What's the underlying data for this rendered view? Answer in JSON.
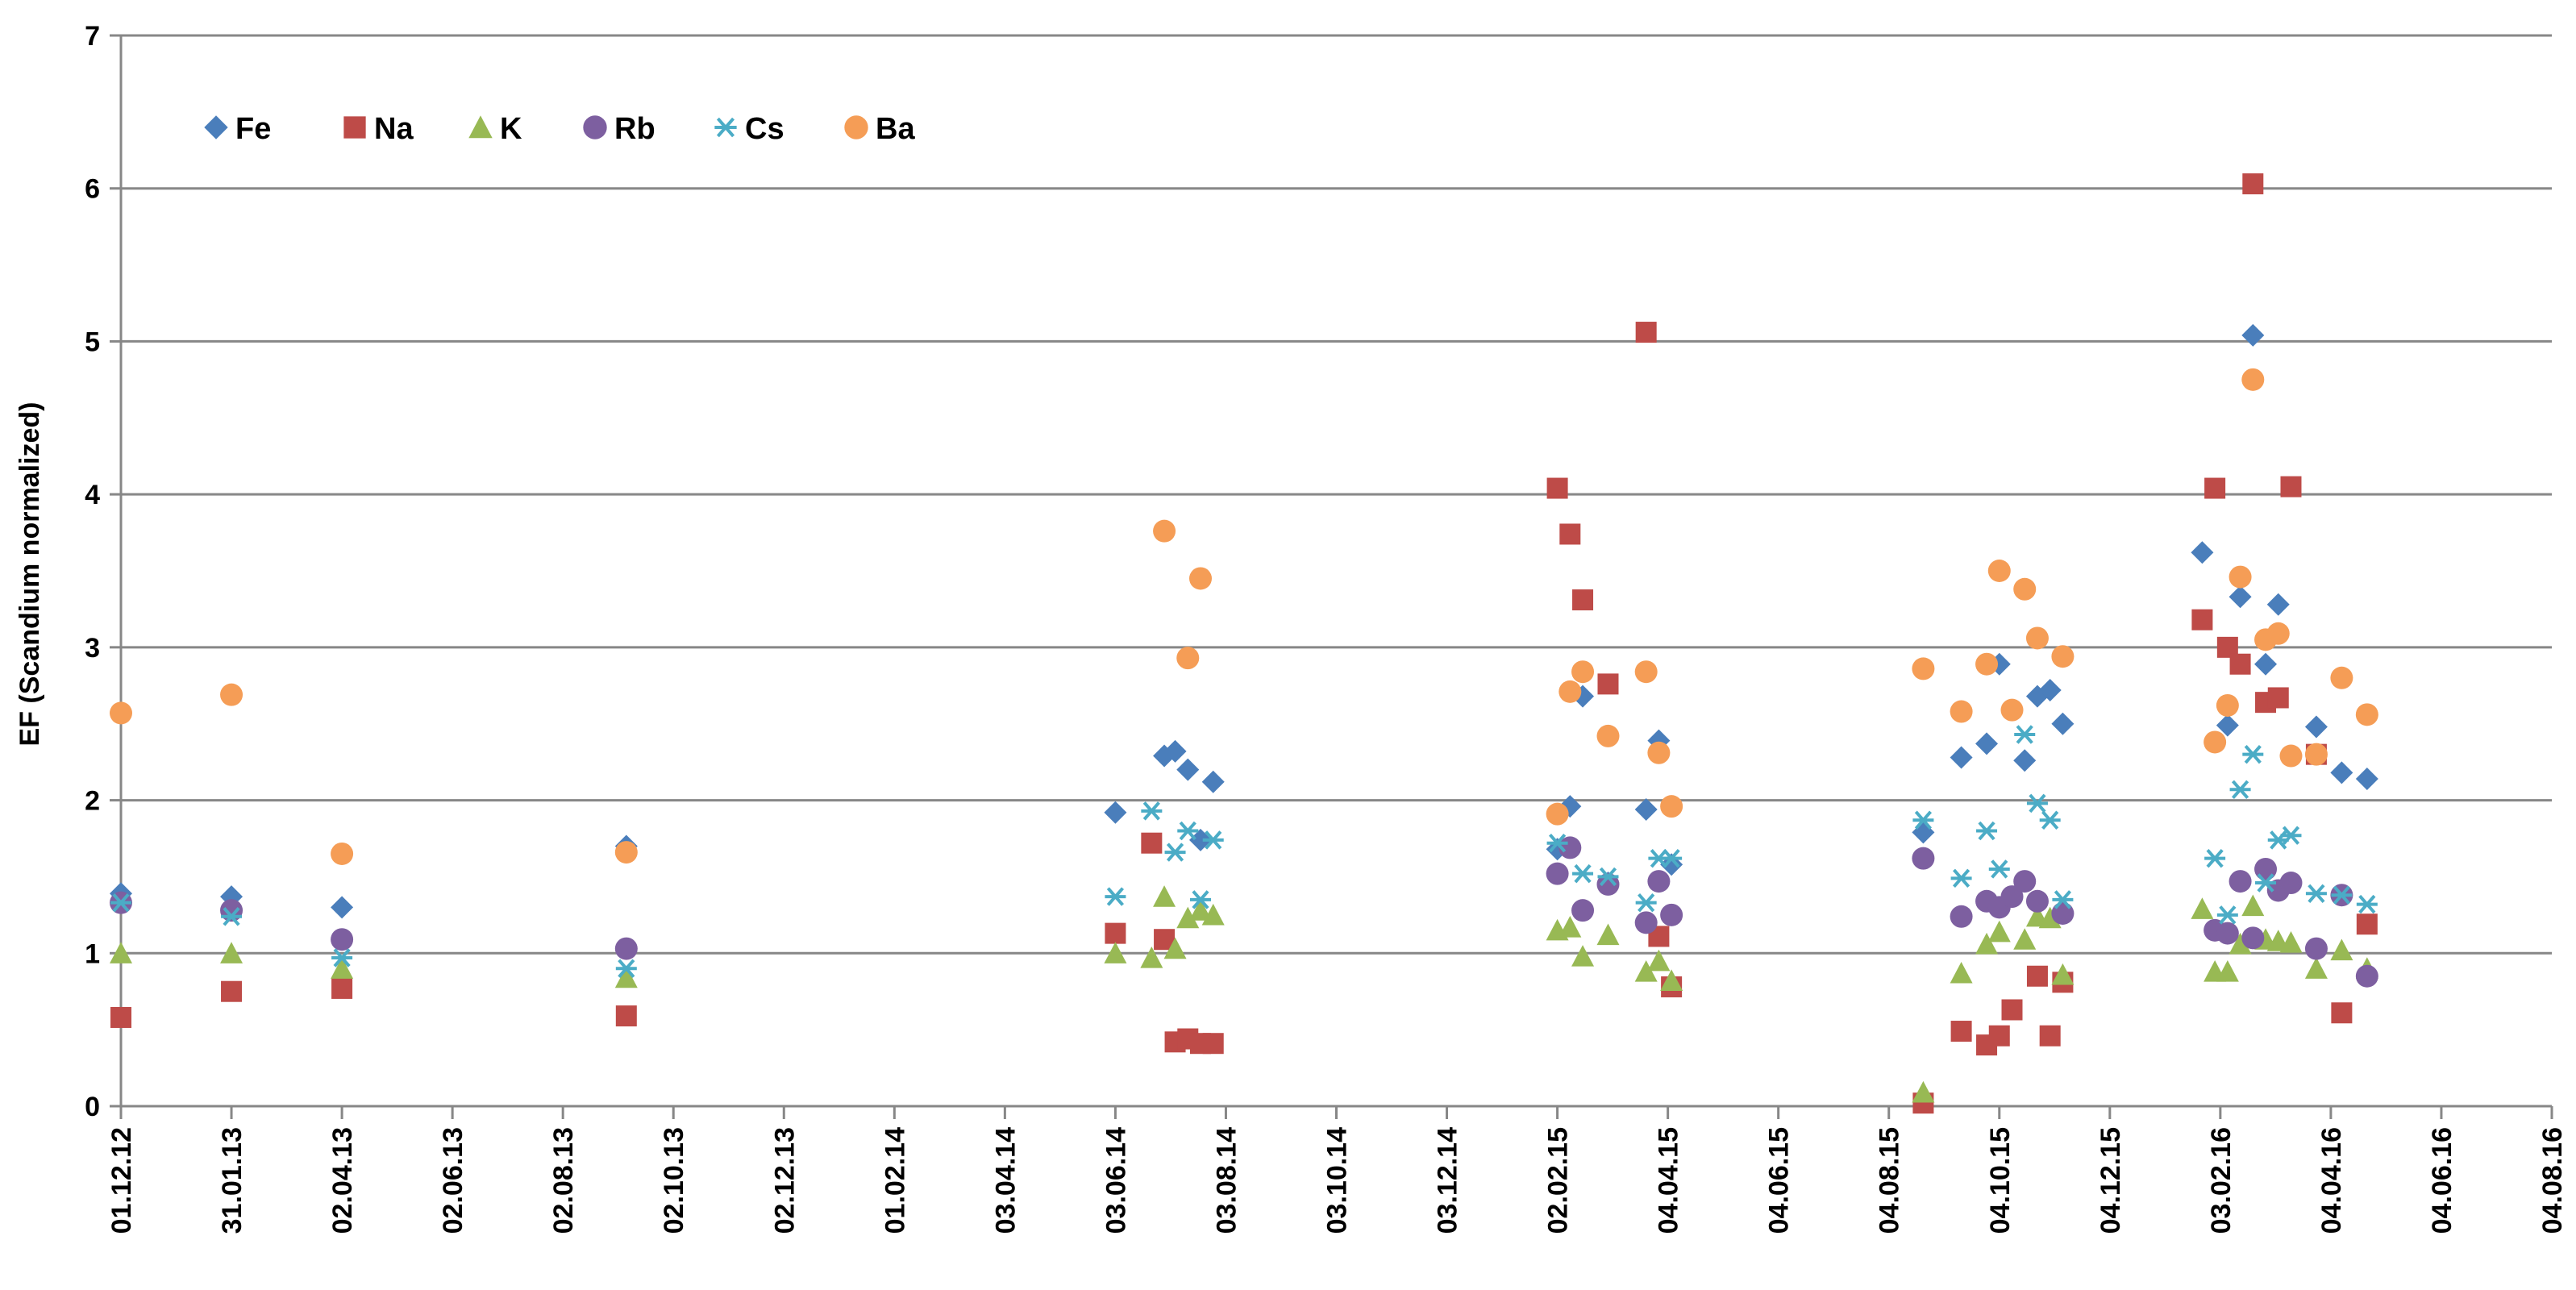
{
  "chart_data": {
    "type": "scatter",
    "title": "",
    "xlabel": "",
    "ylabel": "EF (Scandium normalized)",
    "ylim": [
      0,
      7
    ],
    "yticks": [
      0,
      1,
      2,
      3,
      4,
      5,
      6,
      7
    ],
    "y_grid": true,
    "legend_position": "top-left",
    "x_domain": [
      "2012-12-01",
      "2016-08-04"
    ],
    "x_ticks": [
      {
        "label": "01.12.12",
        "date": "2012-12-01"
      },
      {
        "label": "31.01.13",
        "date": "2013-01-31"
      },
      {
        "label": "02.04.13",
        "date": "2013-04-02"
      },
      {
        "label": "02.06.13",
        "date": "2013-06-02"
      },
      {
        "label": "02.08.13",
        "date": "2013-08-02"
      },
      {
        "label": "02.10.13",
        "date": "2013-10-02"
      },
      {
        "label": "02.12.13",
        "date": "2013-12-02"
      },
      {
        "label": "01.02.14",
        "date": "2014-02-01"
      },
      {
        "label": "03.04.14",
        "date": "2014-04-03"
      },
      {
        "label": "03.06.14",
        "date": "2014-06-03"
      },
      {
        "label": "03.08.14",
        "date": "2014-08-03"
      },
      {
        "label": "03.10.14",
        "date": "2014-10-03"
      },
      {
        "label": "03.12.14",
        "date": "2014-12-03"
      },
      {
        "label": "02.02.15",
        "date": "2015-02-02"
      },
      {
        "label": "04.04.15",
        "date": "2015-04-04"
      },
      {
        "label": "04.06.15",
        "date": "2015-06-04"
      },
      {
        "label": "04.08.15",
        "date": "2015-08-04"
      },
      {
        "label": "04.10.15",
        "date": "2015-10-04"
      },
      {
        "label": "04.12.15",
        "date": "2015-12-04"
      },
      {
        "label": "03.02.16",
        "date": "2016-02-03"
      },
      {
        "label": "04.04.16",
        "date": "2016-04-04"
      },
      {
        "label": "04.06.16",
        "date": "2016-06-04"
      },
      {
        "label": "04.08.16",
        "date": "2016-08-04"
      }
    ],
    "series": [
      {
        "name": "Fe",
        "marker": "diamond",
        "color": "#4a7ebb",
        "points": [
          [
            "2012-12-01",
            1.39
          ],
          [
            "2013-01-31",
            1.37
          ],
          [
            "2013-04-02",
            1.3
          ],
          [
            "2013-09-06",
            1.7
          ],
          [
            "2014-06-03",
            1.92
          ],
          [
            "2014-06-30",
            2.29
          ],
          [
            "2014-07-06",
            2.32
          ],
          [
            "2014-07-13",
            2.2
          ],
          [
            "2014-07-20",
            1.74
          ],
          [
            "2014-07-27",
            2.12
          ],
          [
            "2015-02-02",
            1.68
          ],
          [
            "2015-02-09",
            1.96
          ],
          [
            "2015-02-16",
            2.68
          ],
          [
            "2015-03-02",
            1.46
          ],
          [
            "2015-03-23",
            1.94
          ],
          [
            "2015-03-30",
            2.39
          ],
          [
            "2015-04-06",
            1.58
          ],
          [
            "2015-08-23",
            1.79
          ],
          [
            "2015-09-13",
            2.28
          ],
          [
            "2015-09-27",
            2.37
          ],
          [
            "2015-10-04",
            2.89
          ],
          [
            "2015-10-18",
            2.26
          ],
          [
            "2015-10-25",
            2.68
          ],
          [
            "2015-11-01",
            2.72
          ],
          [
            "2015-11-08",
            2.5
          ],
          [
            "2016-01-24",
            3.62
          ],
          [
            "2016-02-07",
            2.49
          ],
          [
            "2016-02-14",
            3.33
          ],
          [
            "2016-02-21",
            5.04
          ],
          [
            "2016-02-28",
            2.89
          ],
          [
            "2016-03-06",
            3.28
          ],
          [
            "2016-03-27",
            2.48
          ],
          [
            "2016-04-10",
            2.18
          ],
          [
            "2016-04-24",
            2.14
          ]
        ]
      },
      {
        "name": "Na",
        "marker": "square",
        "color": "#be4b48",
        "points": [
          [
            "2012-12-01",
            0.58
          ],
          [
            "2013-01-31",
            0.75
          ],
          [
            "2013-04-02",
            0.77
          ],
          [
            "2013-09-06",
            0.59
          ],
          [
            "2014-06-03",
            1.13
          ],
          [
            "2014-06-23",
            1.72
          ],
          [
            "2014-06-30",
            1.09
          ],
          [
            "2014-07-06",
            0.42
          ],
          [
            "2014-07-13",
            0.44
          ],
          [
            "2014-07-20",
            0.41
          ],
          [
            "2014-07-27",
            0.41
          ],
          [
            "2015-02-02",
            4.04
          ],
          [
            "2015-02-09",
            3.74
          ],
          [
            "2015-02-16",
            3.31
          ],
          [
            "2015-03-02",
            2.76
          ],
          [
            "2015-03-23",
            5.06
          ],
          [
            "2015-03-30",
            1.11
          ],
          [
            "2015-04-06",
            0.78
          ],
          [
            "2015-08-23",
            0.02
          ],
          [
            "2015-09-13",
            0.49
          ],
          [
            "2015-09-27",
            0.4
          ],
          [
            "2015-10-04",
            0.46
          ],
          [
            "2015-10-11",
            0.63
          ],
          [
            "2015-10-25",
            0.85
          ],
          [
            "2015-11-01",
            0.46
          ],
          [
            "2015-11-08",
            0.81
          ],
          [
            "2016-01-24",
            3.18
          ],
          [
            "2016-01-31",
            4.04
          ],
          [
            "2016-02-07",
            3.0
          ],
          [
            "2016-02-14",
            2.89
          ],
          [
            "2016-02-21",
            6.03
          ],
          [
            "2016-02-28",
            2.64
          ],
          [
            "2016-03-06",
            2.67
          ],
          [
            "2016-03-13",
            4.05
          ],
          [
            "2016-03-27",
            2.3
          ],
          [
            "2016-04-10",
            0.61
          ],
          [
            "2016-04-24",
            1.19
          ]
        ]
      },
      {
        "name": "K",
        "marker": "triangle",
        "color": "#98b954",
        "points": [
          [
            "2012-12-01",
            1.0
          ],
          [
            "2013-01-31",
            1.0
          ],
          [
            "2013-04-02",
            0.9
          ],
          [
            "2013-09-06",
            0.84
          ],
          [
            "2014-06-03",
            1.0
          ],
          [
            "2014-06-23",
            0.97
          ],
          [
            "2014-06-30",
            1.37
          ],
          [
            "2014-07-06",
            1.03
          ],
          [
            "2014-07-13",
            1.23
          ],
          [
            "2014-07-20",
            1.28
          ],
          [
            "2014-07-27",
            1.25
          ],
          [
            "2015-02-02",
            1.15
          ],
          [
            "2015-02-09",
            1.17
          ],
          [
            "2015-02-16",
            0.98
          ],
          [
            "2015-03-02",
            1.12
          ],
          [
            "2015-03-23",
            0.88
          ],
          [
            "2015-03-30",
            0.95
          ],
          [
            "2015-04-06",
            0.82
          ],
          [
            "2015-08-23",
            0.09
          ],
          [
            "2015-09-13",
            0.87
          ],
          [
            "2015-09-27",
            1.06
          ],
          [
            "2015-10-04",
            1.14
          ],
          [
            "2015-10-18",
            1.09
          ],
          [
            "2015-10-25",
            1.24
          ],
          [
            "2015-11-01",
            1.23
          ],
          [
            "2015-11-08",
            0.86
          ],
          [
            "2016-01-24",
            1.29
          ],
          [
            "2016-01-31",
            0.88
          ],
          [
            "2016-02-07",
            0.88
          ],
          [
            "2016-02-14",
            1.06
          ],
          [
            "2016-02-21",
            1.31
          ],
          [
            "2016-02-28",
            1.09
          ],
          [
            "2016-03-06",
            1.08
          ],
          [
            "2016-03-13",
            1.07
          ],
          [
            "2016-03-27",
            0.9
          ],
          [
            "2016-04-10",
            1.02
          ],
          [
            "2016-04-24",
            0.9
          ]
        ]
      },
      {
        "name": "Rb",
        "marker": "circle",
        "color": "#7d5fa0",
        "points": [
          [
            "2012-12-01",
            1.33
          ],
          [
            "2013-01-31",
            1.28
          ],
          [
            "2013-04-02",
            1.09
          ],
          [
            "2013-09-06",
            1.03
          ],
          [
            "2015-02-02",
            1.52
          ],
          [
            "2015-02-09",
            1.69
          ],
          [
            "2015-02-16",
            1.28
          ],
          [
            "2015-03-02",
            1.45
          ],
          [
            "2015-03-23",
            1.2
          ],
          [
            "2015-03-30",
            1.47
          ],
          [
            "2015-04-06",
            1.25
          ],
          [
            "2015-08-23",
            1.62
          ],
          [
            "2015-09-13",
            1.24
          ],
          [
            "2015-09-27",
            1.34
          ],
          [
            "2015-10-04",
            1.3
          ],
          [
            "2015-10-11",
            1.37
          ],
          [
            "2015-10-18",
            1.47
          ],
          [
            "2015-10-25",
            1.34
          ],
          [
            "2015-11-08",
            1.26
          ],
          [
            "2016-01-31",
            1.15
          ],
          [
            "2016-02-07",
            1.13
          ],
          [
            "2016-02-14",
            1.47
          ],
          [
            "2016-02-21",
            1.1
          ],
          [
            "2016-02-28",
            1.55
          ],
          [
            "2016-03-06",
            1.41
          ],
          [
            "2016-03-13",
            1.46
          ],
          [
            "2016-03-27",
            1.03
          ],
          [
            "2016-04-10",
            1.38
          ],
          [
            "2016-04-24",
            0.85
          ]
        ]
      },
      {
        "name": "Cs",
        "marker": "star",
        "color": "#4bacc6",
        "points": [
          [
            "2012-12-01",
            1.33
          ],
          [
            "2013-01-31",
            1.24
          ],
          [
            "2013-04-02",
            0.97
          ],
          [
            "2013-09-06",
            0.9
          ],
          [
            "2014-06-03",
            1.37
          ],
          [
            "2014-06-23",
            1.93
          ],
          [
            "2014-07-06",
            1.66
          ],
          [
            "2014-07-13",
            1.8
          ],
          [
            "2014-07-20",
            1.35
          ],
          [
            "2014-07-27",
            1.74
          ],
          [
            "2015-02-02",
            1.72
          ],
          [
            "2015-02-16",
            1.52
          ],
          [
            "2015-03-02",
            1.5
          ],
          [
            "2015-03-23",
            1.33
          ],
          [
            "2015-03-30",
            1.62
          ],
          [
            "2015-04-06",
            1.62
          ],
          [
            "2015-08-23",
            1.87
          ],
          [
            "2015-09-13",
            1.49
          ],
          [
            "2015-09-27",
            1.8
          ],
          [
            "2015-10-04",
            1.55
          ],
          [
            "2015-10-18",
            2.43
          ],
          [
            "2015-10-25",
            1.98
          ],
          [
            "2015-11-01",
            1.87
          ],
          [
            "2015-11-08",
            1.35
          ],
          [
            "2016-01-31",
            1.62
          ],
          [
            "2016-02-07",
            1.25
          ],
          [
            "2016-02-14",
            2.07
          ],
          [
            "2016-02-21",
            2.3
          ],
          [
            "2016-02-28",
            1.46
          ],
          [
            "2016-03-06",
            1.74
          ],
          [
            "2016-03-13",
            1.77
          ],
          [
            "2016-03-27",
            1.39
          ],
          [
            "2016-04-10",
            1.38
          ],
          [
            "2016-04-24",
            1.32
          ]
        ]
      },
      {
        "name": "Ba",
        "marker": "circle",
        "color": "#f59d56",
        "points": [
          [
            "2012-12-01",
            2.57
          ],
          [
            "2013-01-31",
            2.69
          ],
          [
            "2013-04-02",
            1.65
          ],
          [
            "2013-09-06",
            1.66
          ],
          [
            "2014-06-30",
            3.76
          ],
          [
            "2014-07-13",
            2.93
          ],
          [
            "2014-07-20",
            3.45
          ],
          [
            "2015-02-02",
            1.91
          ],
          [
            "2015-02-09",
            2.71
          ],
          [
            "2015-02-16",
            2.84
          ],
          [
            "2015-03-02",
            2.42
          ],
          [
            "2015-03-23",
            2.84
          ],
          [
            "2015-03-30",
            2.31
          ],
          [
            "2015-04-06",
            1.96
          ],
          [
            "2015-08-23",
            2.86
          ],
          [
            "2015-09-13",
            2.58
          ],
          [
            "2015-09-27",
            2.89
          ],
          [
            "2015-10-04",
            3.5
          ],
          [
            "2015-10-11",
            2.59
          ],
          [
            "2015-10-18",
            3.38
          ],
          [
            "2015-10-25",
            3.06
          ],
          [
            "2015-11-08",
            2.94
          ],
          [
            "2016-01-31",
            2.38
          ],
          [
            "2016-02-07",
            2.62
          ],
          [
            "2016-02-14",
            3.46
          ],
          [
            "2016-02-21",
            4.75
          ],
          [
            "2016-02-28",
            3.05
          ],
          [
            "2016-03-06",
            3.09
          ],
          [
            "2016-03-13",
            2.29
          ],
          [
            "2016-03-27",
            2.3
          ],
          [
            "2016-04-10",
            2.8
          ],
          [
            "2016-04-24",
            2.56
          ]
        ]
      }
    ]
  }
}
